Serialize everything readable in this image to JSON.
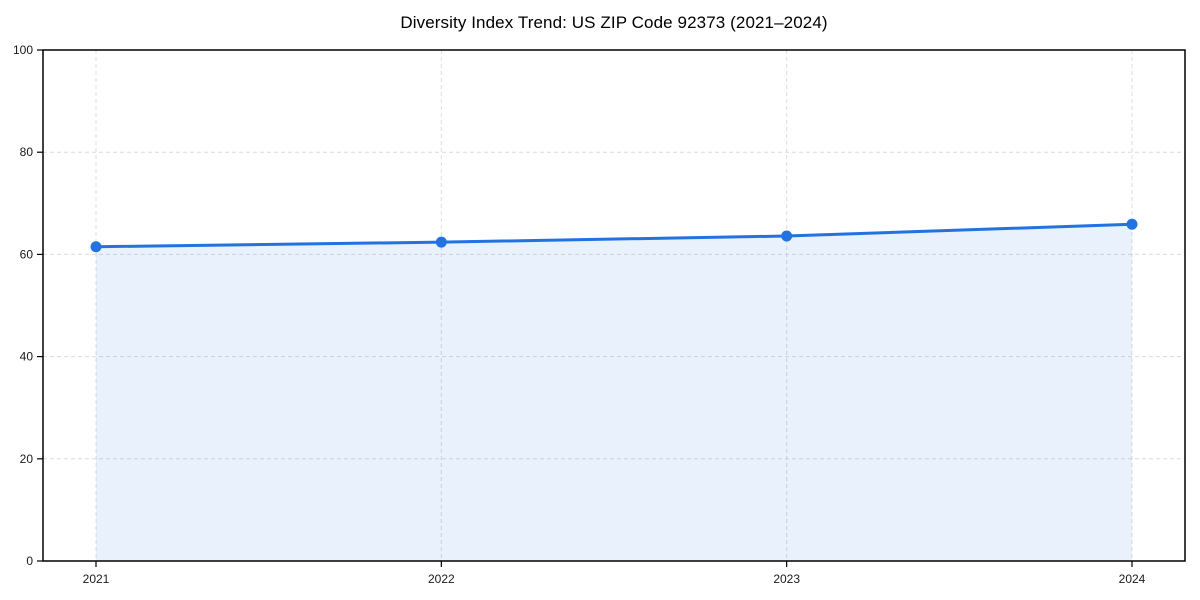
{
  "figure": {
    "title": "Diversity Index Trend: US ZIP Code 92373 (2021–2024)"
  },
  "chart_data": {
    "type": "area",
    "title": "Diversity Index Trend: US ZIP Code 92373 (2021–2024)",
    "xlabel": "",
    "ylabel": "",
    "categories": [
      "2021",
      "2022",
      "2023",
      "2024"
    ],
    "series": [
      {
        "name": "Diversity Index",
        "values": [
          61.5,
          62.4,
          63.6,
          65.9
        ]
      }
    ],
    "ylim": [
      0,
      100
    ],
    "yticks": [
      0,
      20,
      40,
      60,
      80,
      100
    ],
    "grid": true,
    "grid_style": "dashed",
    "legend": false,
    "marker": "circle",
    "colors": {
      "line": "#2272e0",
      "marker": "#2272e0",
      "fill": "rgba(34,114,224,0.10)",
      "gridline": "#dcdcdc",
      "spine": "#000000",
      "tick_text": "#1a1a1a",
      "title_text": "#000000",
      "background": "#ffffff"
    }
  }
}
